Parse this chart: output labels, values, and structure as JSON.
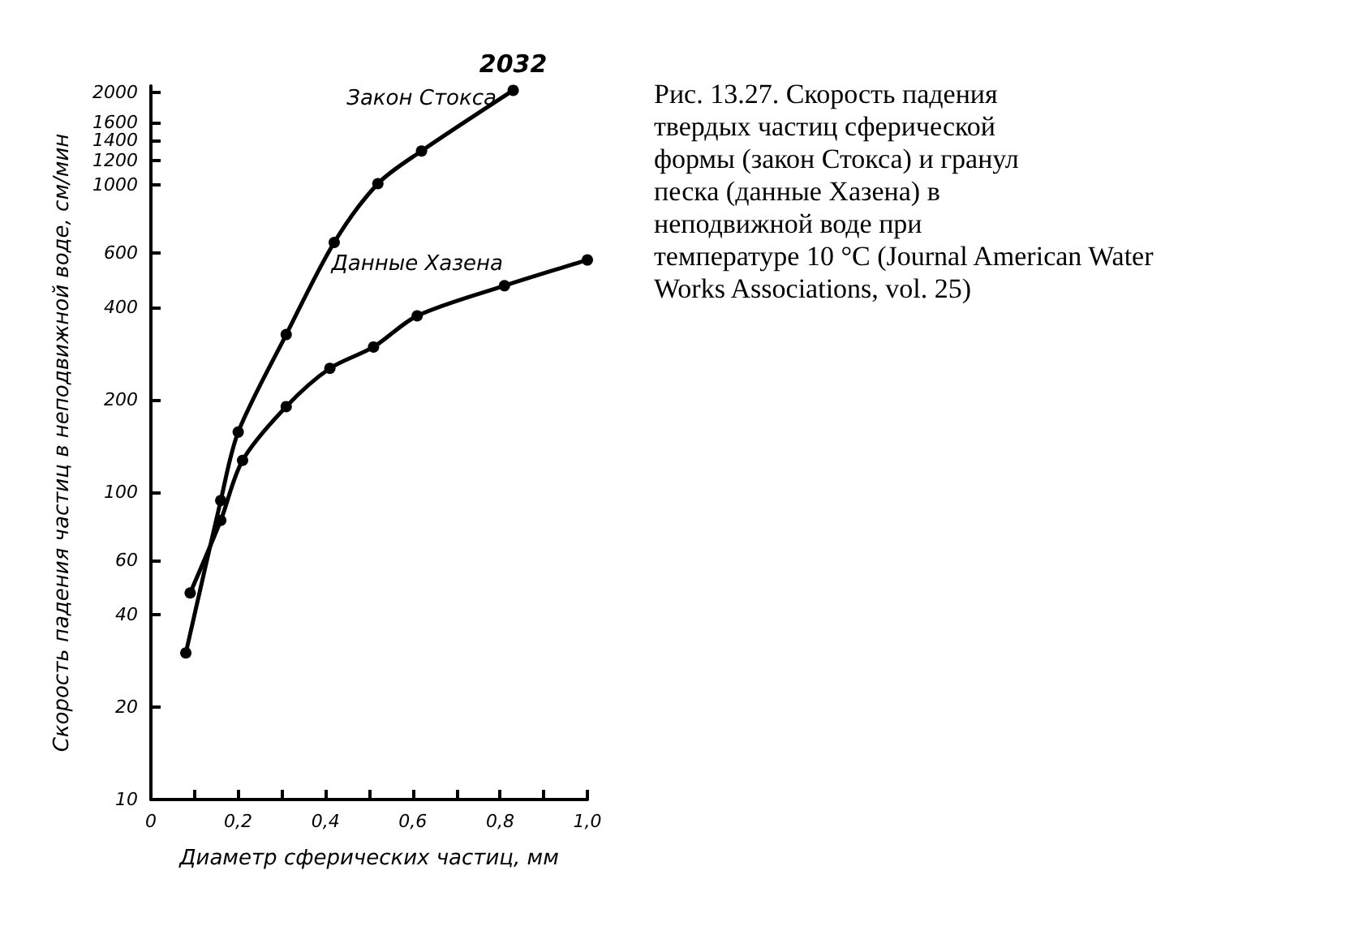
{
  "chart_data": {
    "type": "line",
    "title": "Рис. 13.27. Скорость падения твердых частиц сферической формы (закон Стокса) и гранул песка (данные Хазена) в неподвижной воде при температуре 10 °C (Journal American Water Works Associations, vol. 25)",
    "xlabel": "Диаметр сферических частиц, мм",
    "ylabel": "Скорость падения частиц в неподвижной воде, см/мин",
    "series": [
      {
        "name": "Закон Стокса",
        "color": "#000000",
        "x": [
          0.08,
          0.16,
          0.2,
          0.31,
          0.42,
          0.52,
          0.62,
          0.83
        ],
        "values": [
          30,
          94,
          157,
          326,
          650,
          1010,
          1290,
          2032
        ],
        "value_labels": [
          null,
          null,
          null,
          null,
          null,
          null,
          null,
          "2032"
        ]
      },
      {
        "name": "Данные Хазена",
        "color": "#000000",
        "x": [
          0.09,
          0.16,
          0.21,
          0.31,
          0.41,
          0.51,
          0.61,
          0.81,
          1.0
        ],
        "values": [
          47,
          81,
          127,
          190,
          253,
          297,
          375,
          470,
          570
        ]
      }
    ],
    "xlim": [
      0,
      1
    ],
    "xticks": [
      {
        "value": 0,
        "label": "0"
      },
      {
        "value": 0.1,
        "label": null
      },
      {
        "value": 0.2,
        "label": "0,2"
      },
      {
        "value": 0.3,
        "label": null
      },
      {
        "value": 0.4,
        "label": "0,4"
      },
      {
        "value": 0.5,
        "label": null
      },
      {
        "value": 0.6,
        "label": "0,6"
      },
      {
        "value": 0.7,
        "label": null
      },
      {
        "value": 0.8,
        "label": "0,8"
      },
      {
        "value": 0.9,
        "label": null
      },
      {
        "value": 1,
        "label": "1,0"
      }
    ],
    "ylim": [
      10,
      2100
    ],
    "yticks": [
      10,
      20,
      40,
      60,
      100,
      200,
      400,
      600,
      1000,
      1200,
      1400,
      1600,
      2000
    ],
    "log": "y",
    "grid": false,
    "marker": "circle",
    "line_style": "solid"
  }
}
